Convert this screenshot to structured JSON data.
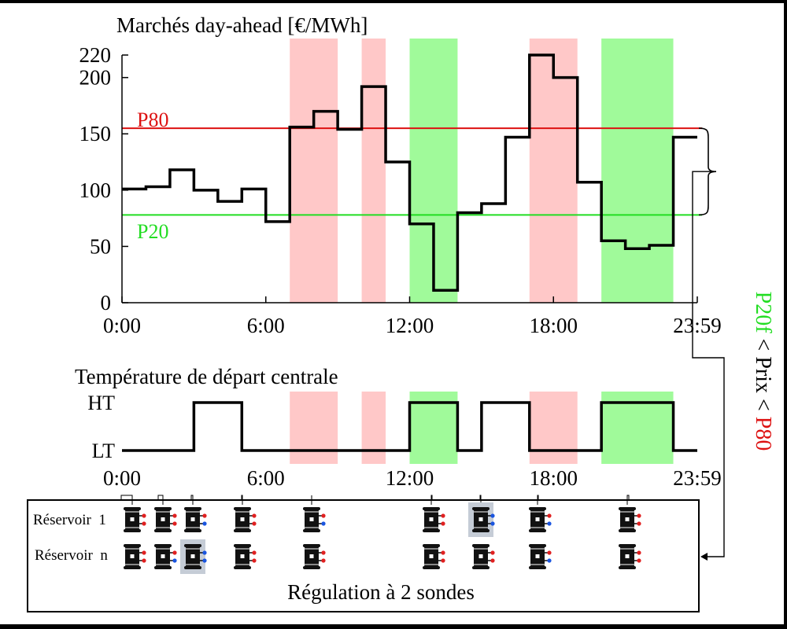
{
  "chart_data": [
    {
      "type": "line",
      "title": "Marchés day-ahead [€/MWh]",
      "xlabel": "",
      "ylabel": "",
      "step": true,
      "xlim": [
        0,
        24
      ],
      "ylim": [
        0,
        220
      ],
      "x_ticks": [
        {
          "value": 0,
          "label": "0:00"
        },
        {
          "value": 6,
          "label": "6:00"
        },
        {
          "value": 12,
          "label": "12:00"
        },
        {
          "value": 18,
          "label": "18:00"
        },
        {
          "value": 24,
          "label": "23:59"
        }
      ],
      "y_ticks": [
        0,
        50,
        100,
        150,
        200,
        220
      ],
      "series": [
        {
          "color": "#000000",
          "x": [
            0,
            1,
            2,
            3,
            4,
            5,
            6,
            7,
            8,
            9,
            10,
            11,
            12,
            13,
            14,
            15,
            16,
            17,
            18,
            19,
            20,
            21,
            22,
            23
          ],
          "values": [
            101,
            103,
            118,
            100,
            90,
            101,
            72,
            156,
            170,
            154,
            192,
            125,
            70,
            11,
            80,
            88,
            147,
            220,
            200,
            107,
            55,
            48,
            51,
            147
          ]
        }
      ],
      "thresholds": [
        {
          "label": "P80",
          "value": 155,
          "color": "#dd1111"
        },
        {
          "label": "P20",
          "value": 78,
          "color": "#22dd22"
        }
      ],
      "shaded_intervals": [
        {
          "start": 7,
          "end": 9,
          "color": "#ffc8c8"
        },
        {
          "start": 10,
          "end": 11,
          "color": "#ffc8c8"
        },
        {
          "start": 12,
          "end": 14,
          "color": "#a0fa9a"
        },
        {
          "start": 17,
          "end": 19,
          "color": "#ffc8c8"
        },
        {
          "start": 20,
          "end": 23,
          "color": "#a0fa9a"
        }
      ],
      "side_label": {
        "parts": [
          {
            "text": "P20f",
            "color": "#22dd22"
          },
          {
            "text": " < Prix < ",
            "color": "#000000"
          },
          {
            "text": "P80",
            "color": "#dd1111"
          }
        ]
      }
    },
    {
      "type": "line",
      "title": "Température de départ centrale",
      "step": true,
      "xlim": [
        0,
        24
      ],
      "categories_y": [
        "LT",
        "HT"
      ],
      "x_ticks": [
        {
          "value": 0,
          "label": "0:00"
        },
        {
          "value": 6,
          "label": "6:00"
        },
        {
          "value": 12,
          "label": "12:00"
        },
        {
          "value": 18,
          "label": "18:00"
        },
        {
          "value": 24,
          "label": "23:59"
        }
      ],
      "series": [
        {
          "color": "#000000",
          "x": [
            0,
            1,
            2,
            3,
            4,
            5,
            6,
            7,
            8,
            9,
            10,
            11,
            12,
            13,
            14,
            15,
            16,
            17,
            18,
            19,
            20,
            21,
            22,
            23
          ],
          "values": [
            0,
            0,
            0,
            1,
            1,
            0,
            0,
            0,
            0,
            0,
            0,
            0,
            1,
            1,
            0,
            1,
            1,
            0,
            0,
            0,
            1,
            1,
            1,
            0
          ]
        }
      ],
      "shaded_intervals": [
        {
          "start": 7,
          "end": 9,
          "color": "#ffc8c8"
        },
        {
          "start": 10,
          "end": 11,
          "color": "#ffc8c8"
        },
        {
          "start": 12,
          "end": 14,
          "color": "#a0fa9a"
        },
        {
          "start": 17,
          "end": 19,
          "color": "#ffc8c8"
        },
        {
          "start": 20,
          "end": 23,
          "color": "#a0fa9a"
        }
      ]
    }
  ],
  "panel": {
    "caption": "Régulation à 2 sondes",
    "rows": [
      {
        "label": "Réservoir  1"
      },
      {
        "label": "Réservoir  n"
      }
    ],
    "tank_icon": "water-tank-icon",
    "hot_color": "#e02020",
    "cold_color": "#1a55e0",
    "highlight_color": "#c5ccd6"
  }
}
